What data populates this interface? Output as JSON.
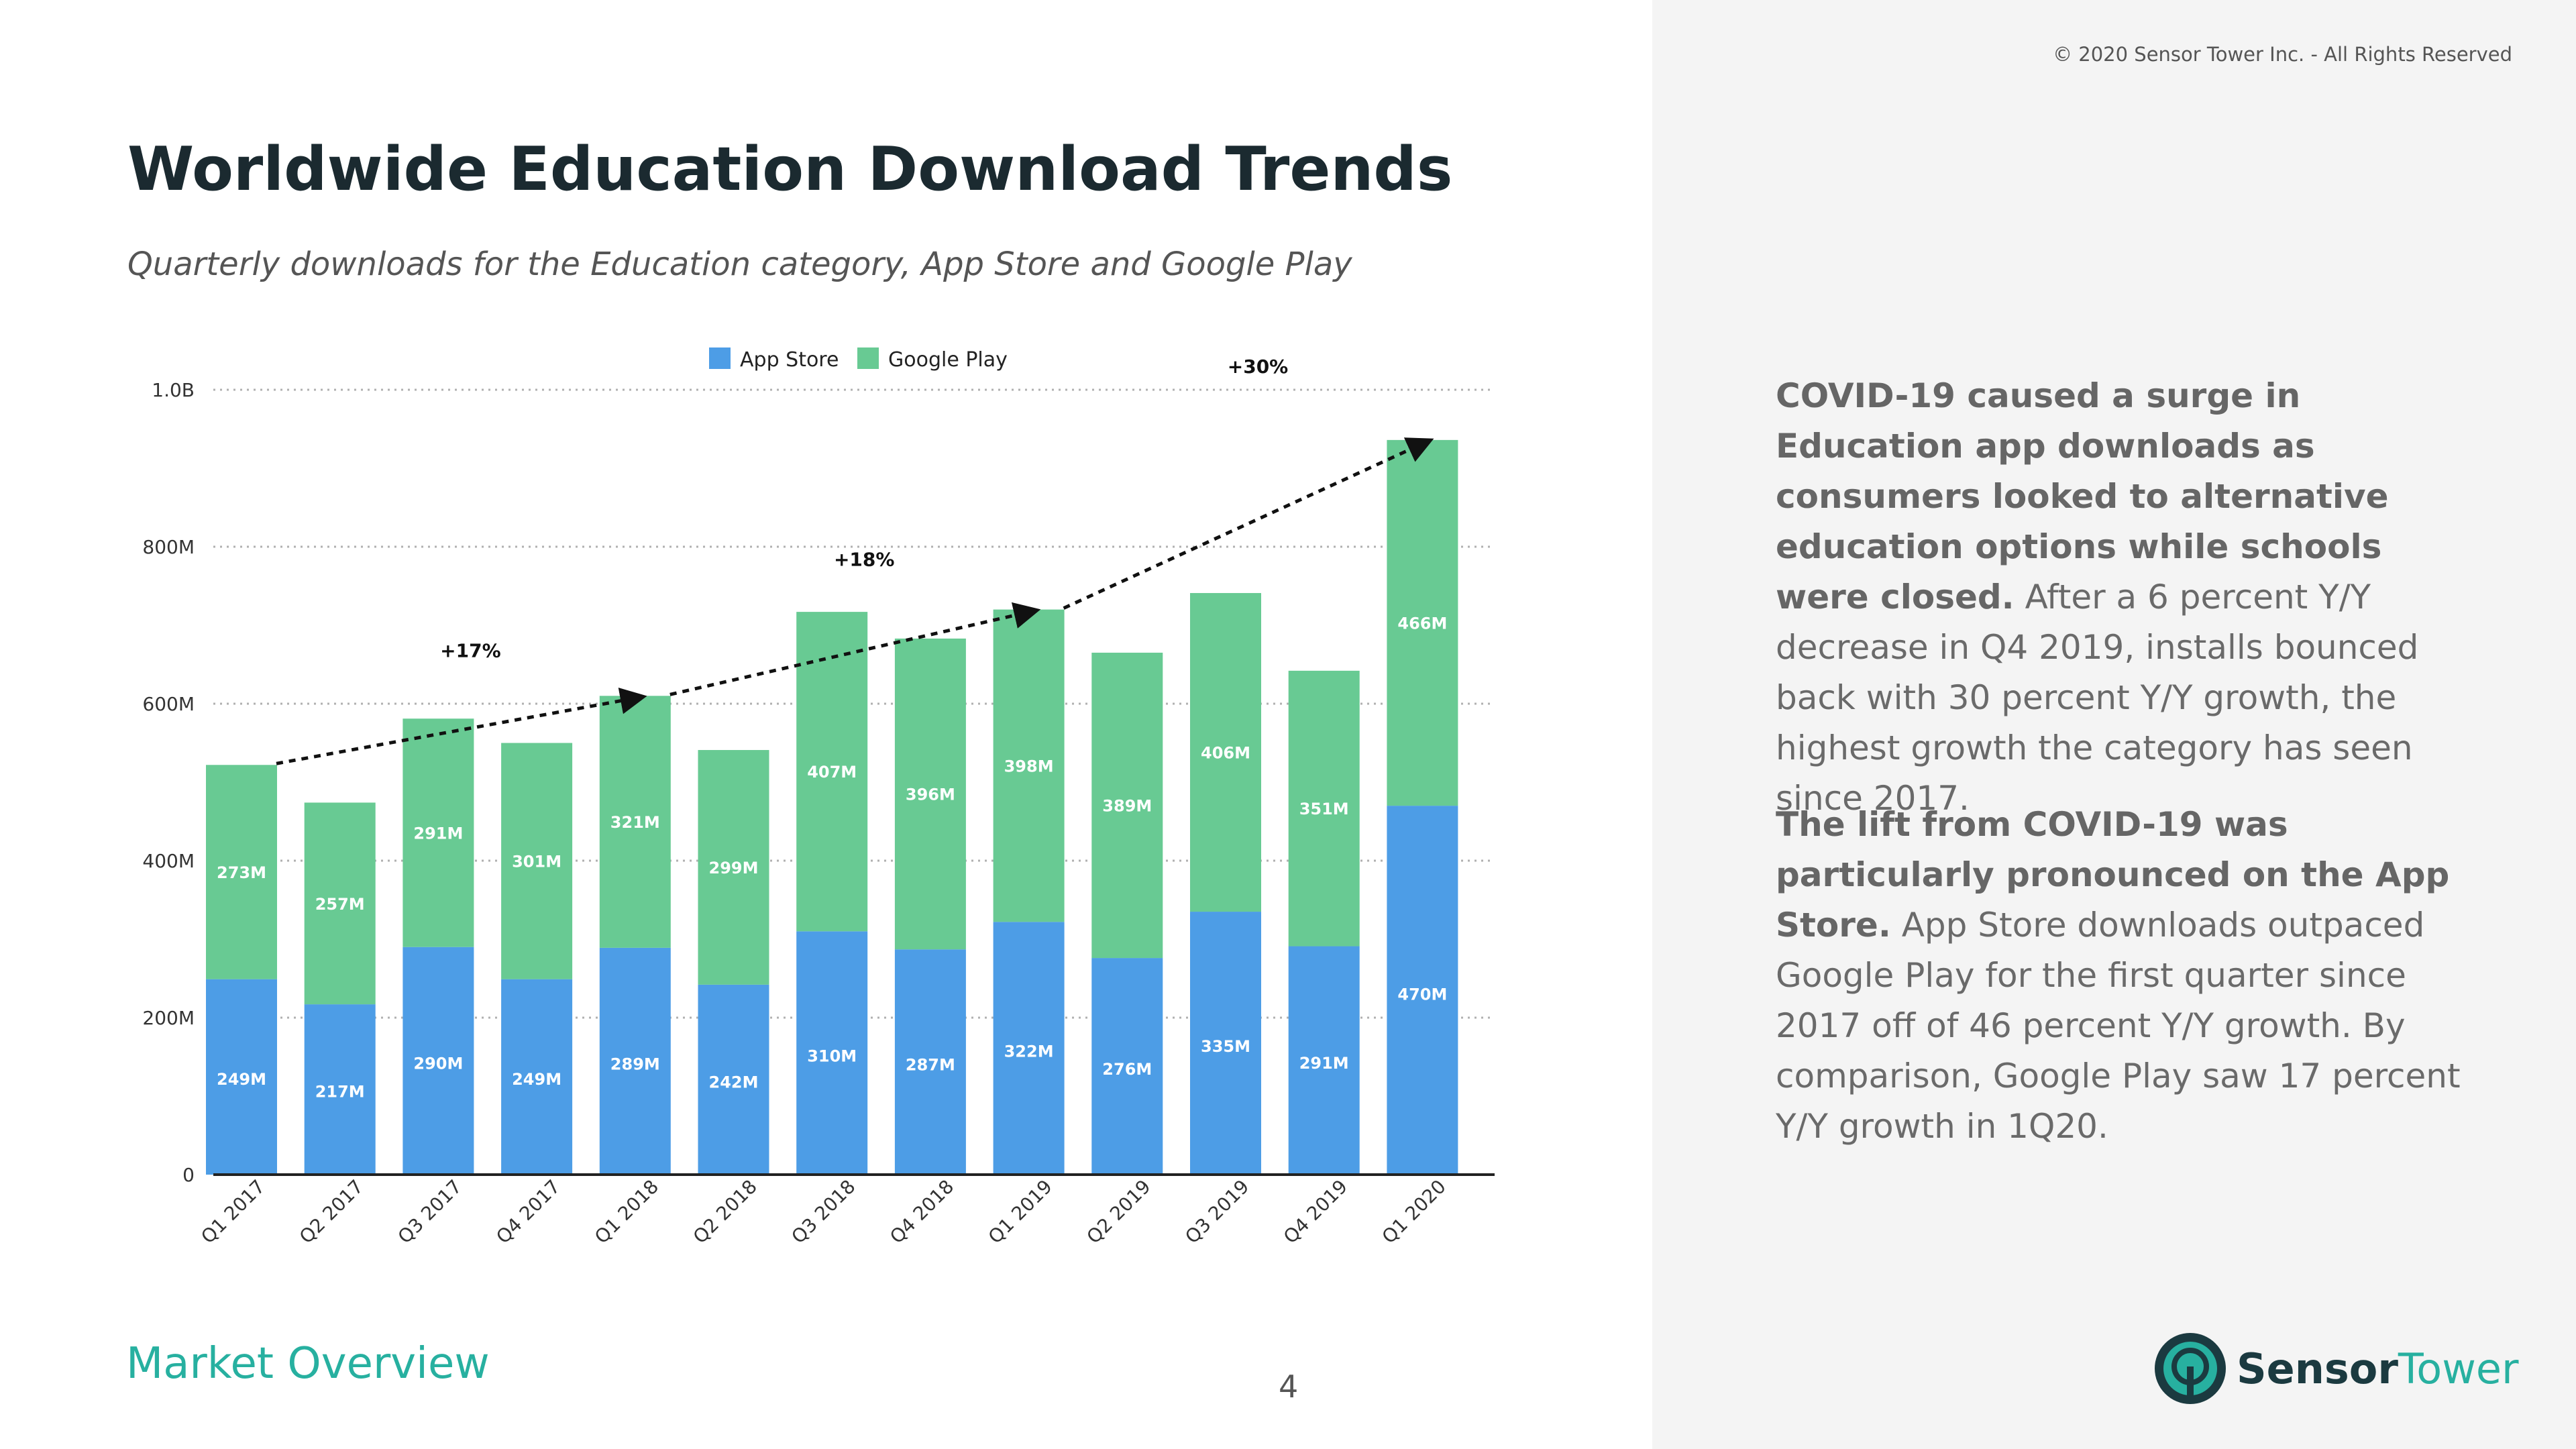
{
  "copyright": "© 2020 Sensor Tower Inc. - All Rights Reserved",
  "title": "Worldwide Education Download Trends",
  "subtitle": "Quarterly downloads for the Education category, App Store and Google Play",
  "chart_data": {
    "type": "bar",
    "stacked": true,
    "categories": [
      "Q1 2017",
      "Q2 2017",
      "Q3 2017",
      "Q4 2017",
      "Q1 2018",
      "Q2 2018",
      "Q3 2018",
      "Q4 2018",
      "Q1 2019",
      "Q2 2019",
      "Q3 2019",
      "Q4 2019",
      "Q1 2020"
    ],
    "series": [
      {
        "name": "App Store",
        "color": "#4d9de6",
        "values": [
          249,
          217,
          290,
          249,
          289,
          242,
          310,
          287,
          322,
          276,
          335,
          291,
          470
        ],
        "labels": [
          "249M",
          "217M",
          "290M",
          "249M",
          "289M",
          "242M",
          "310M",
          "287M",
          "322M",
          "276M",
          "335M",
          "291M",
          "470M"
        ]
      },
      {
        "name": "Google Play",
        "color": "#68ca93",
        "values": [
          273,
          257,
          291,
          301,
          321,
          299,
          407,
          396,
          398,
          389,
          406,
          351,
          466
        ],
        "labels": [
          "273M",
          "257M",
          "291M",
          "301M",
          "321M",
          "299M",
          "407M",
          "396M",
          "398M",
          "389M",
          "406M",
          "351M",
          "466M"
        ]
      }
    ],
    "yunit": "millions",
    "ylim": [
      0,
      1000
    ],
    "yticks": [
      0,
      200,
      400,
      600,
      800,
      1000
    ],
    "ytick_labels": [
      "0",
      "200M",
      "400M",
      "600M",
      "800M",
      "1.0B"
    ],
    "legend": "top-center",
    "annotations": [
      {
        "from": "Q1 2017",
        "to": "Q1 2018",
        "label": "+17%"
      },
      {
        "from": "Q1 2018",
        "to": "Q1 2019",
        "label": "+18%"
      },
      {
        "from": "Q1 2019",
        "to": "Q1 2020",
        "label": "+30%"
      }
    ]
  },
  "sidebar": {
    "para1_bold": "COVID-19 caused a surge in Education app downloads as consumers looked to alternative education options while schools were closed.",
    "para1_rest": " After a 6 percent Y/Y decrease in Q4 2019, installs bounced back with 30 percent Y/Y growth, the highest growth the category has seen since 2017.",
    "para2_bold": "The lift from COVID-19 was particularly pronounced on the App Store.",
    "para2_rest": " App Store downloads outpaced Google Play for the first quarter since 2017 off of 46 percent Y/Y growth. By comparison, Google Play saw 17 percent Y/Y growth in 1Q20."
  },
  "footer": {
    "section": "Market Overview",
    "page_number": "4"
  },
  "logo": {
    "brand_bold": "Sensor",
    "brand_light": "Tower"
  }
}
